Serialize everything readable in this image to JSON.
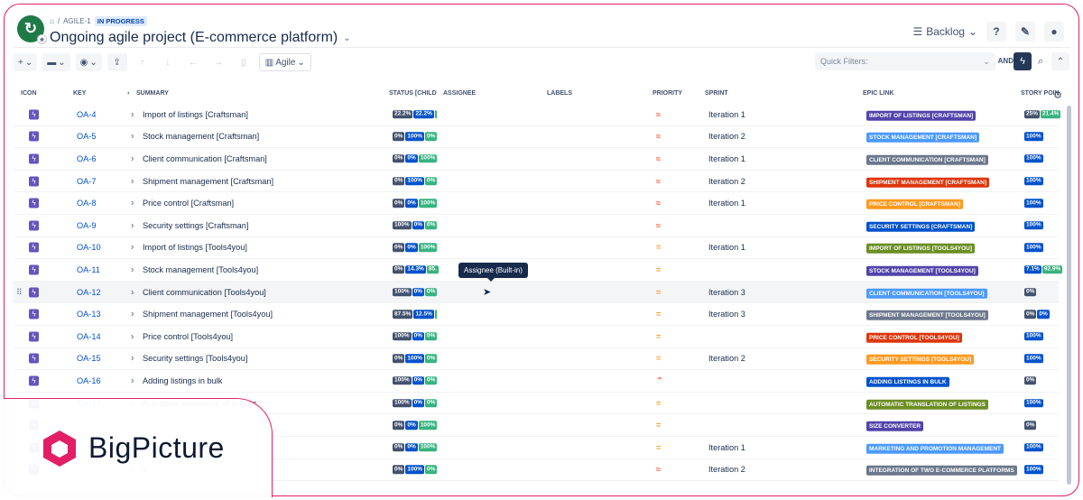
{
  "breadcrumb": {
    "project_key": "AGILE-1",
    "status": "IN PROGRESS"
  },
  "page_title": "Ongoing agile project (E-commerce platform)",
  "header": {
    "view_label": "Backlog",
    "help": "?",
    "tools": "✎",
    "user": "👤"
  },
  "toolbar": {
    "add": "+",
    "folder": "▬",
    "eye": "◉",
    "view_label": "Agile",
    "quick_filters_placeholder": "Quick Filters:",
    "and_label": "AND"
  },
  "columns": {
    "icon": "ICON",
    "key": "KEY",
    "summary": "SUMMARY",
    "status": "STATUS [CHILD",
    "assignee": "ASSIGNEE",
    "labels": "LABELS",
    "priority": "PRIORITY",
    "sprint": "SPRINT",
    "epic": "EPIC LINK",
    "story": "STORY POIN"
  },
  "tooltip": "Assignee (Built-in)",
  "rows": [
    {
      "key": "OA-4",
      "summary": "Import of listings [Craftsman]",
      "status": [
        "22.2%",
        "22.2%",
        ""
      ],
      "priority": "high",
      "sprint": "Iteration 1",
      "epic": "IMPORT OF LISTINGS [CRAFTSMAN]",
      "epic_color": "#5243aa",
      "sp": [
        "25%",
        "21.4%"
      ]
    },
    {
      "key": "OA-5",
      "summary": "Stock management [Craftsman]",
      "status": [
        "0%",
        "100%",
        "0%"
      ],
      "priority": "high",
      "sprint": "Iteration 2",
      "epic": "STOCK MANAGEMENT [CRAFTSMAN]",
      "epic_color": "#4c9aff",
      "sp": [
        "100%"
      ]
    },
    {
      "key": "OA-6",
      "summary": "Client communication [Craftsman]",
      "status": [
        "0%",
        "0%",
        "100%"
      ],
      "priority": "high",
      "sprint": "Iteration 1",
      "epic": "CLIENT COMMUNICATION [CRAFTSMAN]",
      "epic_color": "#6b778c",
      "sp": [
        "100%"
      ]
    },
    {
      "key": "OA-7",
      "summary": "Shipment management [Craftsman]",
      "status": [
        "0%",
        "100%",
        "0%"
      ],
      "priority": "high",
      "sprint": "Iteration 2",
      "epic": "SHIPMENT MANAGEMENT [CRAFTSMAN]",
      "epic_color": "#de350b",
      "sp": [
        "100%"
      ]
    },
    {
      "key": "OA-8",
      "summary": "Price control [Craftsman]",
      "status": [
        "0%",
        "0%",
        "100%"
      ],
      "priority": "high",
      "sprint": "Iteration 1",
      "epic": "PRICE CONTROL [CRAFTSMAN]",
      "epic_color": "#ff991f",
      "sp": [
        "100%"
      ]
    },
    {
      "key": "OA-9",
      "summary": "Security settings [Craftsman]",
      "status": [
        "100%",
        "0%",
        "0%"
      ],
      "priority": "high",
      "sprint": "",
      "epic": "SECURITY SETTINGS [CRAFTSMAN]",
      "epic_color": "#0052cc",
      "sp": [
        "100%"
      ]
    },
    {
      "key": "OA-10",
      "summary": "Import of listings [Tools4you]",
      "status": [
        "0%",
        "0%",
        "100%"
      ],
      "priority": "medium",
      "sprint": "Iteration 1",
      "epic": "IMPORT OF LISTINGS [TOOLS4YOU]",
      "epic_color": "#6b8e23",
      "sp": [
        "100%"
      ]
    },
    {
      "key": "OA-11",
      "summary": "Stock management [Tools4you]",
      "status": [
        "0%",
        "14.3%",
        "85."
      ],
      "priority": "medium",
      "sprint": "",
      "epic": "STOCK MANAGEMENT [TOOLS4YOU]",
      "epic_color": "#5243aa",
      "sp": [
        "7.1%",
        "92.9%"
      ]
    },
    {
      "key": "OA-12",
      "summary": "Client communication [Tools4you]",
      "status": [
        "100%",
        "0%",
        "0%"
      ],
      "priority": "medium",
      "sprint": "Iteration 3",
      "epic": "CLIENT COMMUNICATION [TOOLS4YOU]",
      "epic_color": "#4c9aff",
      "sp": [
        "0%"
      ]
    },
    {
      "key": "OA-13",
      "summary": "Shipment management [Tools4you]",
      "status": [
        "87.5%",
        "12.5%",
        ""
      ],
      "priority": "medium",
      "sprint": "Iteration 3",
      "epic": "SHIPMENT MANAGEMENT [TOOLS4YOU]",
      "epic_color": "#6b778c",
      "sp": [
        "0%",
        "0%"
      ]
    },
    {
      "key": "OA-14",
      "summary": "Price control [Tools4you]",
      "status": [
        "100%",
        "0%",
        "0%"
      ],
      "priority": "medium",
      "sprint": "",
      "epic": "PRICE CONTROL [TOOLS4YOU]",
      "epic_color": "#de350b",
      "sp": [
        "100%"
      ]
    },
    {
      "key": "OA-15",
      "summary": "Security settings [Tools4you]",
      "status": [
        "0%",
        "100%",
        "0%"
      ],
      "priority": "medium",
      "sprint": "Iteration 2",
      "epic": "SECURITY SETTINGS [TOOLS4YOU]",
      "epic_color": "#ff991f",
      "sp": [
        "100%"
      ]
    },
    {
      "key": "OA-16",
      "summary": "Adding listings in bulk",
      "status": [
        "100%",
        "0%",
        "0%"
      ],
      "priority": "low",
      "sprint": "",
      "epic": "ADDING LISTINGS IN BULK",
      "epic_color": "#0052cc",
      "sp": [
        "0%"
      ]
    },
    {
      "key": "OA-17",
      "summary": "Automatic translation of listings",
      "status": [
        "100%",
        "0%",
        "0%"
      ],
      "priority": "medium",
      "sprint": "",
      "epic": "AUTOMATIC TRANSLATION OF LISTINGS",
      "epic_color": "#6b8e23",
      "sp": [
        "100%"
      ]
    },
    {
      "key": "",
      "summary": "",
      "status": [
        "0%",
        "0%",
        "100%"
      ],
      "priority": "medium",
      "sprint": "",
      "epic": "SIZE CONVERTER",
      "epic_color": "#5243aa",
      "sp": [
        "0%"
      ]
    },
    {
      "key": "",
      "summary": "",
      "status": [
        "0%",
        "0%",
        "100%"
      ],
      "priority": "medium",
      "sprint": "Iteration 1",
      "epic": "MARKETING AND PROMOTION MANAGEMENT",
      "epic_color": "#4c9aff",
      "sp": [
        "100%"
      ]
    },
    {
      "key": "",
      "summary": "s",
      "status": [
        "0%",
        "100%",
        "0%"
      ],
      "priority": "high",
      "sprint": "Iteration 2",
      "epic": "INTEGRATION OF TWO E-COMMERCE PLATFORMS",
      "epic_color": "#6b778c",
      "sp": [
        "100%"
      ]
    }
  ],
  "brand": {
    "name": "BigPicture",
    "color": "#e21f66"
  }
}
